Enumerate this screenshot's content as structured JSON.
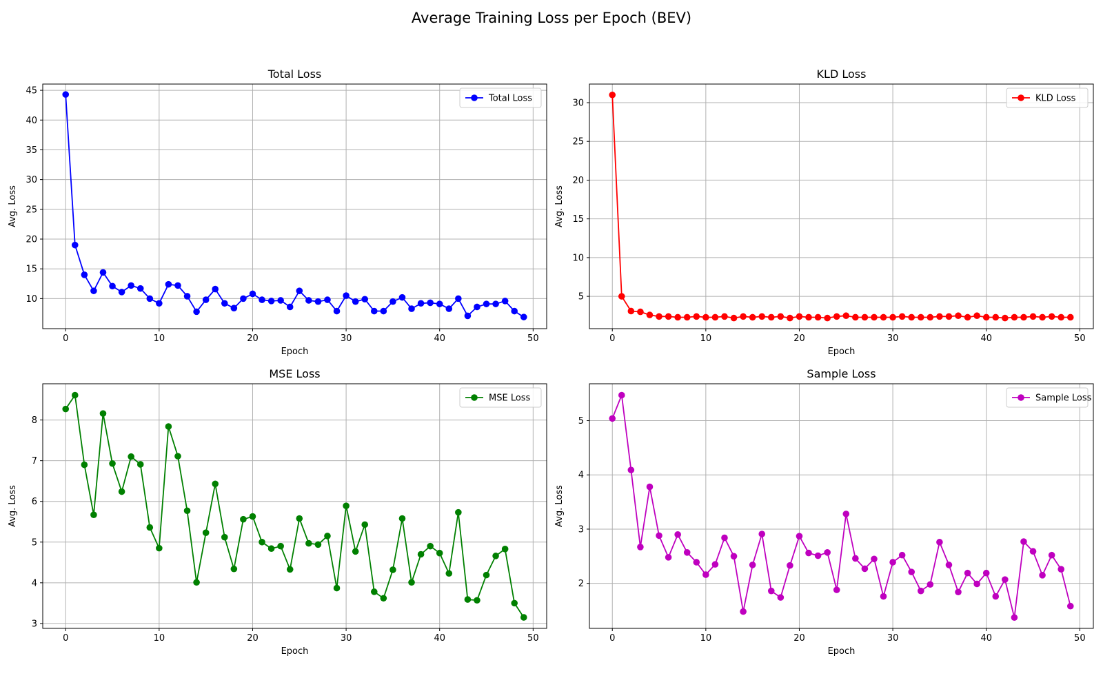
{
  "suptitle": "Average Training Loss per Epoch (BEV)",
  "chart_data": [
    {
      "type": "line",
      "title": "Total Loss",
      "xlabel": "Epoch",
      "ylabel": "Avg. Loss",
      "xlim": [
        -2.45,
        51.45
      ],
      "ylim": [
        4.95,
        46.05
      ],
      "xticks": [
        0,
        10,
        20,
        30,
        40,
        50
      ],
      "yticks": [
        10,
        15,
        20,
        25,
        30,
        35,
        40,
        45
      ],
      "grid": true,
      "legend": "top-right",
      "series": [
        {
          "name": "Total Loss",
          "color": "#0000ff",
          "x": [
            0,
            1,
            2,
            3,
            4,
            5,
            6,
            7,
            8,
            9,
            10,
            11,
            12,
            13,
            14,
            15,
            16,
            17,
            18,
            19,
            20,
            21,
            22,
            23,
            24,
            25,
            26,
            27,
            28,
            29,
            30,
            31,
            32,
            33,
            34,
            35,
            36,
            37,
            38,
            39,
            40,
            41,
            42,
            43,
            44,
            45,
            46,
            47,
            48,
            49
          ],
          "y": [
            44.3,
            19.0,
            14.0,
            11.3,
            14.4,
            12.1,
            11.1,
            12.2,
            11.7,
            10.0,
            9.2,
            12.4,
            12.2,
            10.4,
            7.8,
            9.8,
            11.6,
            9.2,
            8.4,
            10.0,
            10.8,
            9.8,
            9.6,
            9.7,
            8.6,
            11.3,
            9.7,
            9.5,
            9.8,
            7.9,
            10.5,
            9.5,
            9.9,
            7.9,
            7.9,
            9.5,
            10.2,
            8.3,
            9.2,
            9.3,
            9.1,
            8.3,
            10.0,
            7.1,
            8.6,
            9.1,
            9.1,
            9.6,
            7.9,
            6.9
          ]
        }
      ]
    },
    {
      "type": "line",
      "title": "KLD Loss",
      "xlabel": "Epoch",
      "ylabel": "Avg. Loss",
      "xlim": [
        -2.45,
        51.45
      ],
      "ylim": [
        0.83,
        32.4
      ],
      "xticks": [
        0,
        10,
        20,
        30,
        40,
        50
      ],
      "yticks": [
        5,
        10,
        15,
        20,
        25,
        30
      ],
      "grid": true,
      "legend": "top-right",
      "series": [
        {
          "name": "KLD Loss",
          "color": "#ff0000",
          "x": [
            0,
            1,
            2,
            3,
            4,
            5,
            6,
            7,
            8,
            9,
            10,
            11,
            12,
            13,
            14,
            15,
            16,
            17,
            18,
            19,
            20,
            21,
            22,
            23,
            24,
            25,
            26,
            27,
            28,
            29,
            30,
            31,
            32,
            33,
            34,
            35,
            36,
            37,
            38,
            39,
            40,
            41,
            42,
            43,
            44,
            45,
            46,
            47,
            48,
            49
          ],
          "y": [
            31.0,
            5.0,
            3.1,
            3.0,
            2.6,
            2.4,
            2.4,
            2.3,
            2.3,
            2.4,
            2.3,
            2.3,
            2.4,
            2.2,
            2.4,
            2.3,
            2.4,
            2.3,
            2.4,
            2.2,
            2.4,
            2.3,
            2.3,
            2.2,
            2.4,
            2.5,
            2.3,
            2.3,
            2.3,
            2.3,
            2.3,
            2.4,
            2.3,
            2.3,
            2.3,
            2.4,
            2.4,
            2.5,
            2.3,
            2.5,
            2.3,
            2.3,
            2.2,
            2.3,
            2.3,
            2.4,
            2.3,
            2.4,
            2.3,
            2.3
          ]
        }
      ]
    },
    {
      "type": "line",
      "title": "MSE Loss",
      "xlabel": "Epoch",
      "ylabel": "Avg. Loss",
      "xlim": [
        -2.45,
        51.45
      ],
      "ylim": [
        2.88,
        8.89
      ],
      "xticks": [
        0,
        10,
        20,
        30,
        40,
        50
      ],
      "yticks": [
        3,
        4,
        5,
        6,
        7,
        8
      ],
      "grid": true,
      "legend": "top-right",
      "series": [
        {
          "name": "MSE Loss",
          "color": "#008000",
          "x": [
            0,
            1,
            2,
            3,
            4,
            5,
            6,
            7,
            8,
            9,
            10,
            11,
            12,
            13,
            14,
            15,
            16,
            17,
            18,
            19,
            20,
            21,
            22,
            23,
            24,
            25,
            26,
            27,
            28,
            29,
            30,
            31,
            32,
            33,
            34,
            35,
            36,
            37,
            38,
            39,
            40,
            41,
            42,
            43,
            44,
            45,
            46,
            47,
            48,
            49
          ],
          "y": [
            8.27,
            8.61,
            6.9,
            5.67,
            8.16,
            6.93,
            6.24,
            7.1,
            6.91,
            5.36,
            4.85,
            7.84,
            7.11,
            5.77,
            4.01,
            5.23,
            6.43,
            5.12,
            4.34,
            5.56,
            5.63,
            5.0,
            4.84,
            4.9,
            4.33,
            5.58,
            4.97,
            4.94,
            5.15,
            3.87,
            5.89,
            4.77,
            5.43,
            3.78,
            3.62,
            4.32,
            5.58,
            4.01,
            4.7,
            4.9,
            4.73,
            4.23,
            5.73,
            3.59,
            3.57,
            4.19,
            4.66,
            4.83,
            3.5,
            3.15
          ]
        }
      ]
    },
    {
      "type": "line",
      "title": "Sample Loss",
      "xlabel": "Epoch",
      "ylabel": "Avg. Loss",
      "xlim": [
        -2.45,
        51.45
      ],
      "ylim": [
        1.17,
        5.68
      ],
      "xticks": [
        0,
        10,
        20,
        30,
        40,
        50
      ],
      "yticks": [
        2,
        3,
        4,
        5
      ],
      "grid": true,
      "legend": "top-right",
      "series": [
        {
          "name": "Sample Loss",
          "color": "#bf00bf",
          "x": [
            0,
            1,
            2,
            3,
            4,
            5,
            6,
            7,
            8,
            9,
            10,
            11,
            12,
            13,
            14,
            15,
            16,
            17,
            18,
            19,
            20,
            21,
            22,
            23,
            24,
            25,
            26,
            27,
            28,
            29,
            30,
            31,
            32,
            33,
            34,
            35,
            36,
            37,
            38,
            39,
            40,
            41,
            42,
            43,
            44,
            45,
            46,
            47,
            48,
            49
          ],
          "y": [
            5.04,
            5.47,
            4.09,
            2.67,
            3.78,
            2.88,
            2.48,
            2.9,
            2.57,
            2.39,
            2.16,
            2.35,
            2.84,
            2.5,
            1.48,
            2.34,
            2.91,
            1.86,
            1.74,
            2.33,
            2.87,
            2.56,
            2.51,
            2.57,
            1.88,
            3.28,
            2.46,
            2.27,
            2.45,
            1.76,
            2.39,
            2.52,
            2.21,
            1.86,
            1.98,
            2.76,
            2.34,
            1.84,
            2.19,
            1.99,
            2.19,
            1.76,
            2.07,
            1.37,
            2.77,
            2.59,
            2.15,
            2.52,
            2.26,
            1.58
          ]
        }
      ]
    }
  ]
}
